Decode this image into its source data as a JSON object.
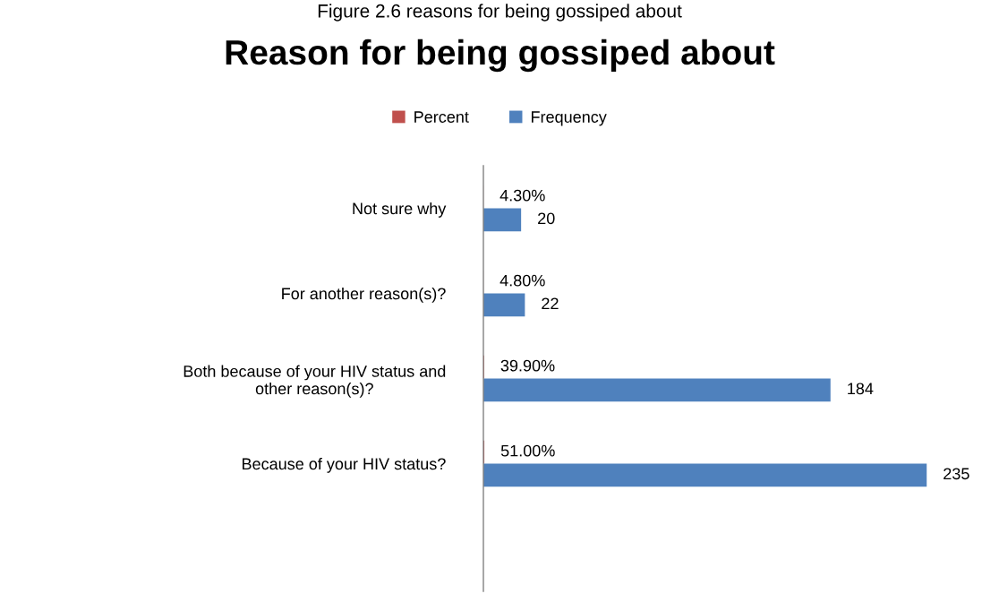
{
  "chart_data": {
    "type": "bar",
    "orientation": "horizontal",
    "title": "Reason for being gossiped about",
    "annotations": [
      "Figure 2.6 reasons for being gossiped about"
    ],
    "categories": [
      "Not sure why",
      "For another reason(s)?",
      "Both because of your HIV status and\nother reason(s)?",
      "Because of your HIV status?",
      null
    ],
    "series": [
      {
        "name": "Percent",
        "color": "#c0504d",
        "values": [
          0.043,
          0.048,
          0.399,
          0.51,
          null
        ],
        "value_labels": [
          "4.30%",
          "4.80%",
          "39.90%",
          "51.00%",
          null
        ]
      },
      {
        "name": "Frequency",
        "color": "#4f81bd",
        "values": [
          20,
          22,
          184,
          235,
          null
        ],
        "value_labels": [
          "20",
          "22",
          "184",
          "235",
          null
        ]
      }
    ],
    "tick_labels": "y",
    "legend": "top",
    "grid": false
  }
}
